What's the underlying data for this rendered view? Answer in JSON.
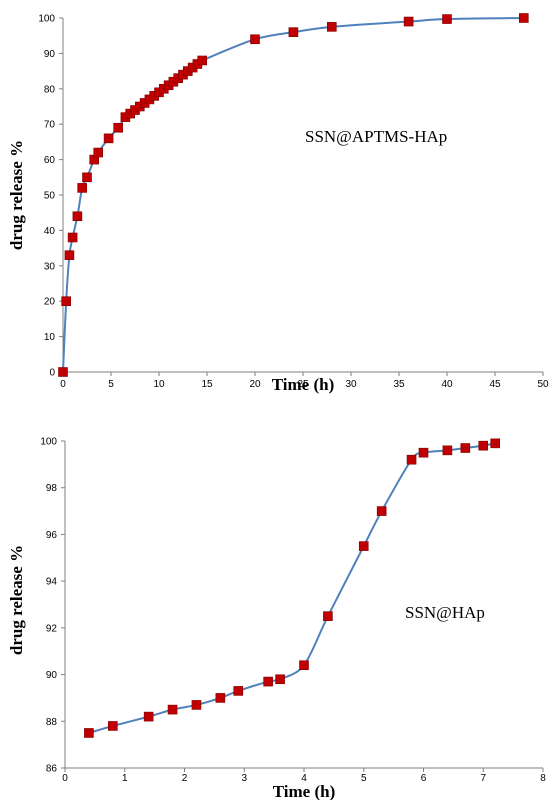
{
  "colors": {
    "line": "#4f81bd",
    "marker": "#c00000",
    "marker_edge": "#7f0000",
    "axis": "#808080"
  },
  "chart_data": [
    {
      "type": "line",
      "xlabel": "Time (h)",
      "ylabel": "drug release %",
      "annotation": "SSN@APTMS-HAp",
      "xlim": [
        0,
        50
      ],
      "ylim": [
        0,
        100
      ],
      "xticks": [
        0,
        5,
        10,
        15,
        20,
        25,
        30,
        35,
        40,
        45,
        50
      ],
      "yticks": [
        0,
        10,
        20,
        30,
        40,
        50,
        60,
        70,
        80,
        90,
        100
      ],
      "grid": false,
      "markers": "square",
      "x": [
        0,
        0.33,
        0.67,
        1,
        1.5,
        2,
        2.5,
        3.25,
        3.67,
        4.75,
        5.75,
        6.5,
        7,
        7.5,
        8,
        8.5,
        9,
        9.5,
        10,
        10.5,
        11,
        11.5,
        12,
        12.5,
        13,
        13.5,
        14,
        14.5,
        20,
        24,
        28,
        36,
        40,
        48
      ],
      "y": [
        0,
        20,
        33,
        38,
        44,
        52,
        55,
        60,
        62,
        66,
        69,
        72,
        73,
        74,
        75,
        76,
        77,
        78,
        79,
        80,
        81,
        82,
        83,
        84,
        85,
        86,
        87,
        88,
        94,
        96,
        97.5,
        99,
        99.7,
        100
      ]
    },
    {
      "type": "line",
      "xlabel": "Time (h)",
      "ylabel": "drug release %",
      "annotation": "SSN@HAp",
      "xlim": [
        0,
        8
      ],
      "ylim": [
        86,
        100
      ],
      "xticks": [
        0,
        1,
        2,
        3,
        4,
        5,
        6,
        7,
        8
      ],
      "yticks": [
        86,
        88,
        90,
        92,
        94,
        96,
        98,
        100
      ],
      "grid": false,
      "markers": "square",
      "x": [
        0.4,
        0.8,
        1.4,
        1.8,
        2.2,
        2.6,
        2.9,
        3.4,
        3.6,
        4.0,
        4.4,
        5.0,
        5.3,
        5.8,
        6.0,
        6.4,
        6.7,
        7.0,
        7.2
      ],
      "y": [
        87.5,
        87.8,
        88.2,
        88.5,
        88.7,
        89.0,
        89.3,
        89.7,
        89.8,
        90.4,
        92.5,
        95.5,
        97.0,
        99.2,
        99.5,
        99.6,
        99.7,
        99.8,
        99.9
      ]
    }
  ]
}
